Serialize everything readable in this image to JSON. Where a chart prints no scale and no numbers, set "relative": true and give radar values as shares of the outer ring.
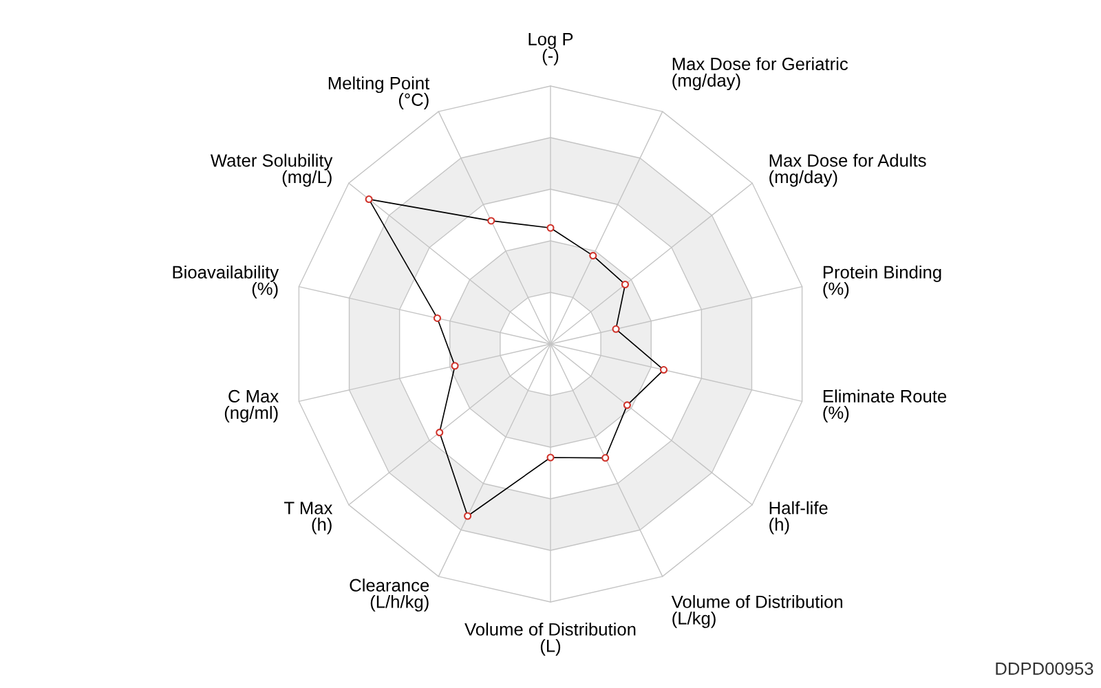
{
  "chart_data": {
    "type": "radar",
    "relative": true,
    "grid": true,
    "marker": "circle",
    "categories": [
      "Log P\n(-)",
      "Max Dose for Geriatric\n(mg/day)",
      "Max Dose for Adults\n(mg/day)",
      "Protein Binding\n(%)",
      "Eliminate Route\n(%)",
      "Half-life\n(h)",
      "Volume of Distribution\n(L/kg)",
      "Volume of Distribution\n(L)",
      "Clearance\n(L/h/kg)",
      "T Max\n(h)",
      "C Max\n(ng/ml)",
      "Bioavailability\n(%)",
      "Water Solubility\n(mg/L)",
      "Melting Point\n(°C)"
    ],
    "series": [
      {
        "color": "#000000",
        "colors": [
          "#d0332b",
          "#d0332b",
          "#d0332b",
          "#d0332b",
          "#d0332b",
          "#d0332b",
          "#d0332b",
          "#d0332b",
          "#d0332b",
          "#d0332b",
          "#d0332b",
          "#d0332b",
          "#d0332b",
          "#d0332b"
        ],
        "values": [
          0.45,
          0.38,
          0.37,
          0.26,
          0.45,
          0.38,
          0.49,
          0.44,
          0.74,
          0.55,
          0.38,
          0.45,
          0.9,
          0.53
        ]
      }
    ],
    "annotations": [
      "DDPD00953"
    ]
  }
}
